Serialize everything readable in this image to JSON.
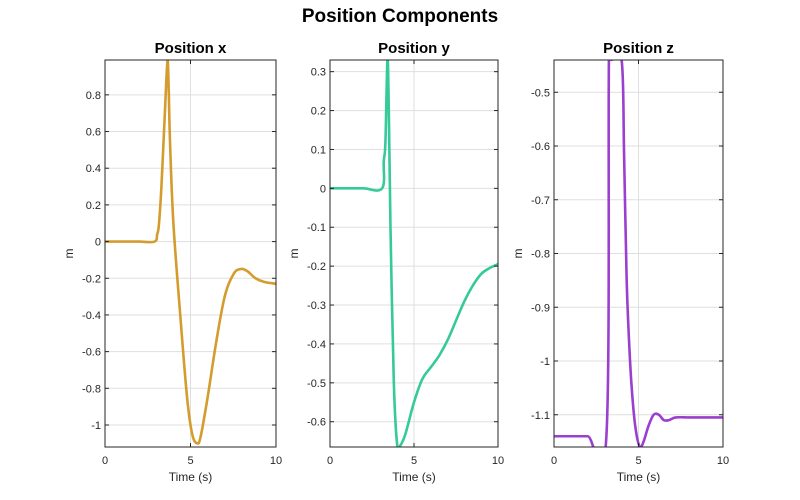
{
  "title": "Position Components",
  "chart_data": [
    {
      "type": "line",
      "title": "Position x",
      "xlabel": "Time (s)",
      "ylabel": "m",
      "xlim": [
        0,
        10
      ],
      "ylim": [
        -1.12,
        0.99
      ],
      "xticks": [
        0,
        5,
        10
      ],
      "yticks": [
        -1,
        -0.8,
        -0.6,
        -0.4,
        -0.2,
        0,
        0.2,
        0.4,
        0.6,
        0.8
      ],
      "ytick_labels": [
        "-1",
        "-0.8",
        "-0.6",
        "-0.4",
        "-0.2",
        "0",
        "0.2",
        "0.4",
        "0.6",
        "0.8"
      ],
      "grid": true,
      "series": [
        {
          "color": "#d49c2e",
          "x": [
            0,
            1,
            2,
            2.9,
            3.05,
            3.15,
            3.3,
            3.5,
            3.65,
            3.72,
            3.8,
            4.0,
            4.4,
            4.8,
            5.1,
            5.4,
            5.6,
            6.0,
            6.5,
            7.0,
            7.5,
            7.9,
            8.3,
            8.8,
            9.3,
            10
          ],
          "y": [
            0,
            0,
            0,
            0,
            0.04,
            0.09,
            0.3,
            0.7,
            0.98,
            0.85,
            0.55,
            0.1,
            -0.4,
            -0.85,
            -1.05,
            -1.1,
            -1.06,
            -0.85,
            -0.55,
            -0.3,
            -0.18,
            -0.15,
            -0.16,
            -0.2,
            -0.22,
            -0.23
          ]
        }
      ]
    },
    {
      "type": "line",
      "title": "Position y",
      "xlabel": "Time (s)",
      "ylabel": "m",
      "xlim": [
        0,
        10
      ],
      "ylim": [
        -0.665,
        0.33
      ],
      "xticks": [
        0,
        5,
        10
      ],
      "yticks": [
        -0.6,
        -0.5,
        -0.4,
        -0.3,
        -0.2,
        -0.1,
        0,
        0.1,
        0.2,
        0.3
      ],
      "ytick_labels": [
        "-0.6",
        "-0.5",
        "-0.4",
        "-0.3",
        "-0.2",
        "-0.1",
        "0",
        "0.1",
        "0.2",
        "0.3"
      ],
      "grid": true,
      "series": [
        {
          "color": "#36c99a",
          "x": [
            0,
            1,
            2,
            3.1,
            3.2,
            3.3,
            3.42,
            3.5,
            3.6,
            3.8,
            4.0,
            4.2,
            4.5,
            5.0,
            5.5,
            6.0,
            6.5,
            7.0,
            7.5,
            8.0,
            8.5,
            9.0,
            9.5,
            10
          ],
          "y": [
            0,
            0,
            0,
            0,
            0.07,
            0.12,
            0.33,
            0.2,
            -0.1,
            -0.5,
            -0.66,
            -0.66,
            -0.63,
            -0.55,
            -0.49,
            -0.46,
            -0.43,
            -0.39,
            -0.34,
            -0.29,
            -0.25,
            -0.22,
            -0.205,
            -0.195
          ]
        }
      ]
    },
    {
      "type": "line",
      "title": "Position z",
      "xlabel": "Time (s)",
      "ylabel": "m",
      "xlim": [
        0,
        10
      ],
      "ylim": [
        -1.16,
        -0.44
      ],
      "xticks": [
        0,
        5,
        10
      ],
      "yticks": [
        -1.1,
        -1,
        -0.9,
        -0.8,
        -0.7,
        -0.6,
        -0.5
      ],
      "ytick_labels": [
        "-1.1",
        "-1",
        "-0.9",
        "-0.8",
        "-0.7",
        "-0.6",
        "-0.5"
      ],
      "grid": true,
      "series": [
        {
          "color": "#9b3fcf",
          "x": [
            0,
            1,
            2,
            3.1,
            3.25,
            3.4,
            4.0,
            4.15,
            4.3,
            4.5,
            4.7,
            4.9,
            5.1,
            5.3,
            5.6,
            5.9,
            6.2,
            6.5,
            6.8,
            7.2,
            8,
            9,
            10
          ],
          "y": [
            -1.14,
            -1.14,
            -1.14,
            -1.14,
            -0.44,
            -0.44,
            -0.44,
            -0.62,
            -0.85,
            -1.0,
            -1.09,
            -1.14,
            -1.16,
            -1.15,
            -1.12,
            -1.1,
            -1.1,
            -1.11,
            -1.11,
            -1.105,
            -1.105,
            -1.105,
            -1.105
          ]
        }
      ]
    }
  ]
}
